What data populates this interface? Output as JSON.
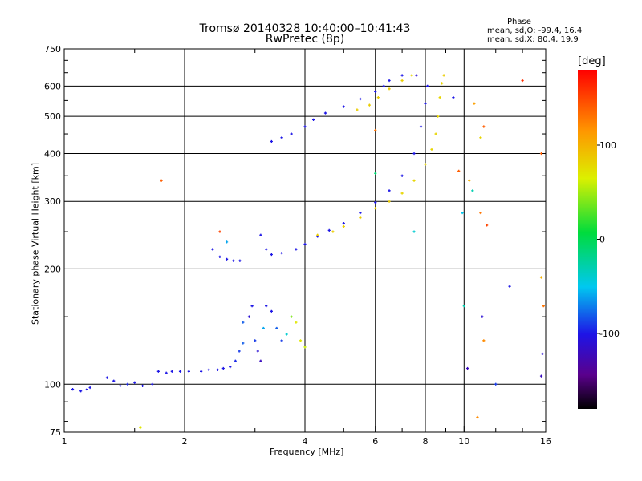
{
  "chart_data": {
    "type": "scatter",
    "title": "Tromsø 20140328 10:40:00–10:41:43",
    "subtitle": "RwPretec (8p)",
    "xlabel": "Frequency [MHz]",
    "ylabel": "Stationary phase Virtual Height [km]",
    "x_scale": "log",
    "y_scale": "log",
    "xlim": [
      1,
      16
    ],
    "ylim": [
      75,
      750
    ],
    "x_ticks": [
      1,
      2,
      4,
      6,
      8,
      10,
      16
    ],
    "y_ticks": [
      75,
      100,
      200,
      300,
      400,
      500,
      600,
      750
    ],
    "grid": true,
    "phase_stats": {
      "heading": "Phase",
      "o_line": "mean, sd,O:  -99.4, 16.4",
      "x_line": "mean, sd,X:   80.4, 19.9"
    },
    "colorbar": {
      "label": "[deg]",
      "ticks": [
        100,
        0,
        -100
      ],
      "range": [
        -180,
        180
      ]
    },
    "series": [
      {
        "trace": "low-e-region",
        "x": [
          1.05,
          1.1,
          1.14,
          1.16,
          1.28,
          1.33,
          1.38,
          1.44,
          1.5,
          1.57,
          1.66,
          1.72,
          1.8,
          1.86,
          1.95,
          2.05,
          2.2,
          2.3,
          2.42,
          2.5,
          2.6,
          2.68,
          2.74,
          2.8
        ],
        "y": [
          97,
          96,
          97,
          98,
          104,
          102,
          99,
          100,
          101,
          99,
          100,
          108,
          107,
          108,
          108,
          108,
          108,
          109,
          109,
          110,
          111,
          115,
          122,
          128
        ],
        "phase": [
          -100,
          -100,
          -100,
          -100,
          -100,
          -100,
          -100,
          -95,
          -100,
          -100,
          -100,
          -100,
          -100,
          -100,
          -100,
          -100,
          -100,
          -100,
          -100,
          -100,
          -100,
          -95,
          -90,
          -80
        ]
      },
      {
        "trace": "spread-cluster",
        "x": [
          2.8,
          2.9,
          2.95,
          3.0,
          3.05,
          3.1,
          3.15,
          3.2,
          3.3,
          3.4,
          3.5,
          3.6,
          3.7,
          3.8,
          3.9,
          4.0
        ],
        "y": [
          145,
          150,
          160,
          130,
          122,
          115,
          140,
          160,
          155,
          140,
          130,
          135,
          150,
          145,
          130,
          125
        ],
        "phase": [
          -80,
          -110,
          -100,
          -90,
          -110,
          -120,
          -60,
          -100,
          -100,
          -80,
          -90,
          -40,
          40,
          70,
          70,
          60
        ]
      },
      {
        "trace": "lower-f-trace",
        "x": [
          2.35,
          2.45,
          2.55,
          2.65,
          2.75,
          3.1,
          3.2,
          3.3,
          3.5,
          3.8,
          4.0,
          4.3,
          4.6,
          5.0,
          5.5,
          6.0,
          6.5,
          7.0,
          7.5,
          7.8,
          8.0,
          8.1
        ],
        "y": [
          225,
          215,
          212,
          210,
          210,
          245,
          225,
          218,
          220,
          225,
          232,
          243,
          252,
          263,
          280,
          298,
          320,
          350,
          400,
          470,
          540,
          600
        ],
        "phase": [
          -100,
          -100,
          -100,
          -100,
          -100,
          -100,
          -100,
          -100,
          -100,
          -100,
          -100,
          -100,
          -100,
          -100,
          -100,
          -100,
          -100,
          -100,
          -100,
          -100,
          -100,
          -100
        ]
      },
      {
        "trace": "x-mode-trace",
        "x": [
          4.3,
          4.7,
          5.0,
          5.5,
          6.0,
          6.5,
          7.0,
          7.5,
          8.0,
          8.3,
          8.5,
          8.6,
          8.7,
          8.8,
          8.9
        ],
        "y": [
          245,
          250,
          258,
          272,
          288,
          300,
          315,
          340,
          375,
          410,
          450,
          500,
          560,
          610,
          640
        ],
        "phase": [
          85,
          85,
          85,
          85,
          85,
          85,
          80,
          80,
          80,
          80,
          80,
          80,
          80,
          80,
          85
        ]
      },
      {
        "trace": "upper-trace",
        "x": [
          3.3,
          3.5,
          3.7,
          4.0,
          4.2,
          4.5,
          5.0,
          5.5,
          6.0,
          6.3,
          6.5,
          7.0
        ],
        "y": [
          430,
          440,
          450,
          470,
          490,
          510,
          530,
          555,
          580,
          600,
          620,
          640
        ],
        "phase": [
          -100,
          -100,
          -100,
          -100,
          -100,
          -100,
          -100,
          -100,
          -100,
          -100,
          -100,
          -100
        ]
      },
      {
        "trace": "upper-x-trace",
        "x": [
          5.4,
          5.8,
          6.1,
          6.5,
          7.0,
          7.4
        ],
        "y": [
          520,
          535,
          560,
          590,
          620,
          640
        ],
        "phase": [
          85,
          85,
          85,
          85,
          85,
          80
        ]
      },
      {
        "trace": "scattered-points",
        "x": [
          1.75,
          2.45,
          2.55,
          1.55,
          6.0,
          6.0,
          7.5,
          7.6,
          9.7,
          9.9,
          10.0,
          10.2,
          10.6,
          10.8,
          11.2,
          11.0,
          11.4,
          11.1,
          12.0,
          13.0,
          14.0,
          15.6,
          15.6,
          15.8,
          15.7,
          15.6,
          11.2,
          10.5,
          9.4,
          10.3,
          11.0
        ],
        "y": [
          340,
          250,
          235,
          77,
          460,
          355,
          250,
          640,
          360,
          280,
          160,
          110,
          540,
          82,
          470,
          280,
          260,
          150,
          100,
          180,
          620,
          400,
          190,
          160,
          120,
          105,
          130,
          320,
          560,
          340,
          440
        ],
        "phase": [
          140,
          150,
          -60,
          70,
          130,
          -10,
          -40,
          -110,
          140,
          -50,
          -30,
          -120,
          110,
          120,
          140,
          130,
          150,
          -110,
          -90,
          -100,
          160,
          140,
          100,
          130,
          -110,
          -120,
          120,
          -30,
          -100,
          100,
          80
        ]
      }
    ]
  }
}
